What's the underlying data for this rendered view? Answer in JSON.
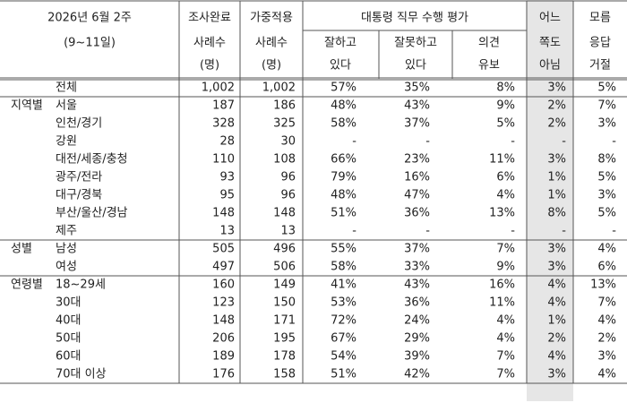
{
  "header": {
    "date": [
      "2026년 6월 2주",
      "(9~11일)"
    ],
    "completed": [
      "조사완료",
      "사례수",
      "(명)"
    ],
    "weighted": [
      "가중적용",
      "사례수",
      "(명)"
    ],
    "evaluation": "대통령 직무 수행 평가",
    "good": [
      "잘하고",
      "있다"
    ],
    "bad": [
      "잘못하고",
      "있다"
    ],
    "reserve": [
      "의견",
      "유보"
    ],
    "neither": [
      "어느",
      "쪽도",
      "아님"
    ],
    "unknown": [
      "모름",
      "응답",
      "거절"
    ]
  },
  "table": {
    "total": {
      "label": "전체",
      "cells": [
        "1,002",
        "1,002",
        "57%",
        "35%",
        "8%",
        "3%",
        "5%"
      ]
    },
    "groups": [
      {
        "label": "지역별",
        "rows": [
          {
            "label": "서울",
            "cells": [
              "187",
              "186",
              "48%",
              "43%",
              "9%",
              "2%",
              "7%"
            ]
          },
          {
            "label": "인천/경기",
            "cells": [
              "328",
              "325",
              "58%",
              "37%",
              "5%",
              "2%",
              "3%"
            ]
          },
          {
            "label": "강원",
            "cells": [
              "28",
              "30",
              "-",
              "-",
              "-",
              "-",
              "-"
            ]
          },
          {
            "label": "대전/세종/충청",
            "cells": [
              "110",
              "108",
              "66%",
              "23%",
              "11%",
              "3%",
              "8%"
            ]
          },
          {
            "label": "광주/전라",
            "cells": [
              "93",
              "96",
              "79%",
              "16%",
              "6%",
              "1%",
              "5%"
            ]
          },
          {
            "label": "대구/경북",
            "cells": [
              "95",
              "96",
              "48%",
              "47%",
              "4%",
              "1%",
              "3%"
            ]
          },
          {
            "label": "부산/울산/경남",
            "cells": [
              "148",
              "148",
              "51%",
              "36%",
              "13%",
              "8%",
              "5%"
            ]
          },
          {
            "label": "제주",
            "cells": [
              "13",
              "13",
              "-",
              "-",
              "-",
              "-",
              "-"
            ]
          }
        ]
      },
      {
        "label": "성별",
        "rows": [
          {
            "label": "남성",
            "cells": [
              "505",
              "496",
              "55%",
              "37%",
              "7%",
              "3%",
              "4%"
            ]
          },
          {
            "label": "여성",
            "cells": [
              "497",
              "506",
              "58%",
              "33%",
              "9%",
              "3%",
              "6%"
            ]
          }
        ]
      },
      {
        "label": "연령별",
        "rows": [
          {
            "label": "18~29세",
            "cells": [
              "160",
              "149",
              "41%",
              "43%",
              "16%",
              "4%",
              "13%"
            ]
          },
          {
            "label": "30대",
            "cells": [
              "123",
              "150",
              "53%",
              "36%",
              "11%",
              "4%",
              "7%"
            ]
          },
          {
            "label": "40대",
            "cells": [
              "148",
              "171",
              "72%",
              "24%",
              "4%",
              "1%",
              "4%"
            ]
          },
          {
            "label": "50대",
            "cells": [
              "206",
              "195",
              "67%",
              "29%",
              "4%",
              "2%",
              "2%"
            ]
          },
          {
            "label": "60대",
            "cells": [
              "189",
              "178",
              "54%",
              "39%",
              "7%",
              "4%",
              "3%"
            ]
          },
          {
            "label": "70대 이상",
            "cells": [
              "176",
              "158",
              "51%",
              "42%",
              "7%",
              "3%",
              "4%"
            ]
          }
        ]
      }
    ]
  }
}
